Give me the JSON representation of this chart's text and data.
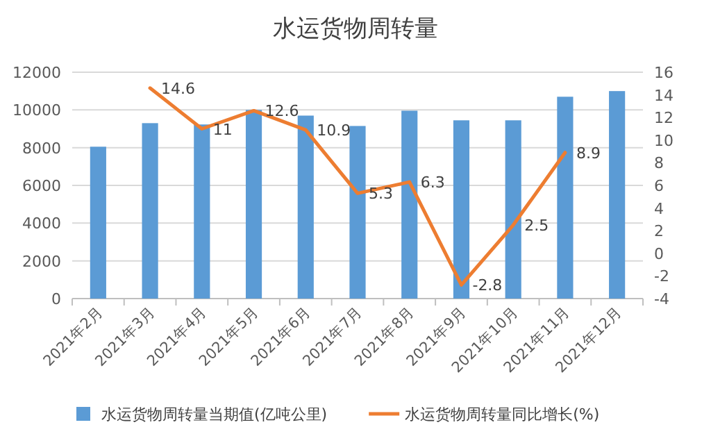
{
  "chart_data": {
    "type": "bar",
    "title": "水运货物周转量",
    "categories": [
      "2021年2月",
      "2021年3月",
      "2021年4月",
      "2021年5月",
      "2021年6月",
      "2021年7月",
      "2021年8月",
      "2021年9月",
      "2021年10月",
      "2021年11月",
      "2021年12月"
    ],
    "series": [
      {
        "name": "水运货物周转量当期值(亿吨公里)",
        "color": "#5b9bd5",
        "values": [
          8050,
          9300,
          9230,
          10000,
          9700,
          9150,
          9960,
          9450,
          9450,
          10700,
          11000
        ]
      },
      {
        "name": "水运货物周转量同比增长(%)",
        "type": "line",
        "axis": "y2",
        "color": "#ed7d31",
        "values": [
          null,
          14.6,
          11,
          12.6,
          10.9,
          5.3,
          6.3,
          -2.8,
          2.5,
          8.9,
          null
        ],
        "value_labels": [
          null,
          "14.6",
          "11",
          "12.6",
          "10.9",
          "5.3",
          "6.3",
          "-2.8",
          "2.5",
          "8.9",
          null
        ]
      }
    ],
    "ylim": [
      0,
      12000
    ],
    "yticks": [
      0,
      2000,
      4000,
      6000,
      8000,
      10000,
      12000
    ],
    "y2lim": [
      -4,
      16
    ],
    "y2ticks": [
      -4,
      -2,
      0,
      2,
      4,
      6,
      8,
      10,
      12,
      14,
      16
    ],
    "grid": "y",
    "legend": "bottom",
    "marker": "none",
    "line_style": "solid"
  }
}
